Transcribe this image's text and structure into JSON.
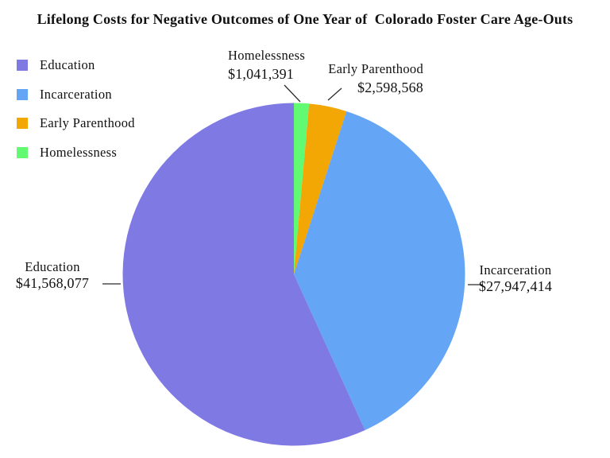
{
  "chart_data": {
    "type": "pie",
    "title": "Lifelong Costs for Negative Outcomes of One Year of  Colorado Foster Care Age-Outs",
    "slices": [
      {
        "label": "Education",
        "value": 41568077,
        "value_label": "$41,568,077",
        "color": "#7f79e4"
      },
      {
        "label": "Incarceration",
        "value": 27947414,
        "value_label": "$27,947,414",
        "color": "#64a5f6"
      },
      {
        "label": "Early Parenthood",
        "value": 2598568,
        "value_label": "$2,598,568",
        "color": "#f2a705"
      },
      {
        "label": "Homelessness",
        "value": 1041391,
        "value_label": "$1,041,391",
        "color": "#62fa73"
      }
    ],
    "legend_position": "top-left",
    "labels_placement": "outside-with-leader-lines",
    "start_angle": "12-o-clock",
    "winding": "counterclockwise-in-legend-order",
    "background": "#ffffff",
    "leader_line_color": "#2b2b2b"
  }
}
